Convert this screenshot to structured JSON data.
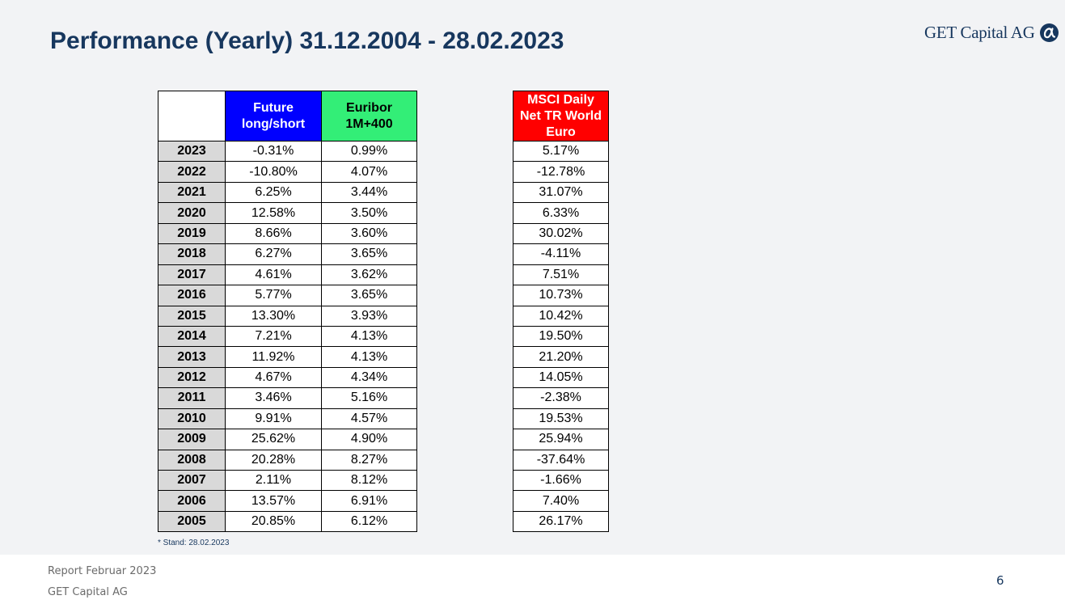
{
  "title": {
    "bold": "Performance (Yearly)",
    "regular": " 31.12.2004 - 28.02.2023"
  },
  "logo": {
    "text": "GET Capital AG",
    "icon": "alpha-circle-icon",
    "color": "#17375e"
  },
  "main_table": {
    "headers": [
      "",
      "Future long/short",
      "Euribor 1M+400"
    ],
    "header_colors": [
      "#ffffff",
      "#0000ff",
      "#33ee77"
    ],
    "rows": [
      [
        "2023",
        "-0.31%",
        "0.99%"
      ],
      [
        "2022",
        "-10.80%",
        "4.07%"
      ],
      [
        "2021",
        "6.25%",
        "3.44%"
      ],
      [
        "2020",
        "12.58%",
        "3.50%"
      ],
      [
        "2019",
        "8.66%",
        "3.60%"
      ],
      [
        "2018",
        "6.27%",
        "3.65%"
      ],
      [
        "2017",
        "4.61%",
        "3.62%"
      ],
      [
        "2016",
        "5.77%",
        "3.65%"
      ],
      [
        "2015",
        "13.30%",
        "3.93%"
      ],
      [
        "2014",
        "7.21%",
        "4.13%"
      ],
      [
        "2013",
        "11.92%",
        "4.13%"
      ],
      [
        "2012",
        "4.67%",
        "4.34%"
      ],
      [
        "2011",
        "3.46%",
        "5.16%"
      ],
      [
        "2010",
        "9.91%",
        "4.57%"
      ],
      [
        "2009",
        "25.62%",
        "4.90%"
      ],
      [
        "2008",
        "20.28%",
        "8.27%"
      ],
      [
        "2007",
        "2.11%",
        "8.12%"
      ],
      [
        "2006",
        "13.57%",
        "6.91%"
      ],
      [
        "2005",
        "20.85%",
        "6.12%"
      ]
    ]
  },
  "msci_table": {
    "header": "MSCI Daily Net TR World Euro",
    "header_color": "#ff0000",
    "values": [
      "5.17%",
      "-12.78%",
      "31.07%",
      "6.33%",
      "30.02%",
      "-4.11%",
      "7.51%",
      "10.73%",
      "10.42%",
      "19.50%",
      "21.20%",
      "14.05%",
      "-2.38%",
      "19.53%",
      "25.94%",
      "-37.64%",
      "-1.66%",
      "7.40%",
      "26.17%"
    ]
  },
  "footnote": "* Stand: 28.02.2023",
  "footer": {
    "line1": "Report Februar 2023",
    "line2": "GET Capital AG",
    "page_number": "6"
  }
}
